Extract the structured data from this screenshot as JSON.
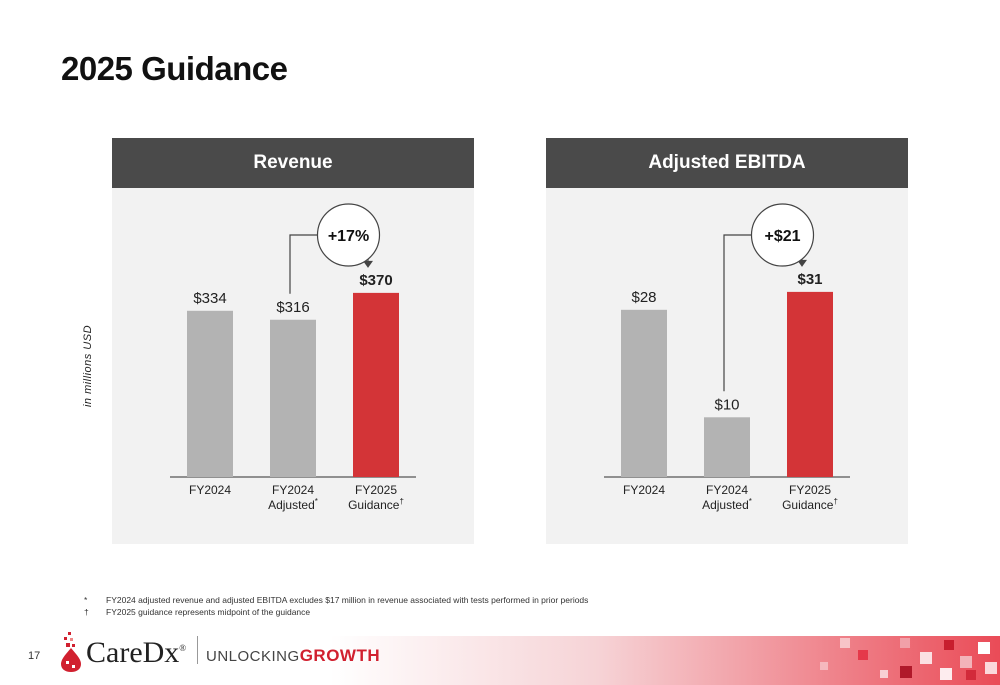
{
  "slide": {
    "title": "2025 Guidance",
    "unit_label": "in millions USD",
    "page_number": "17"
  },
  "colors": {
    "bar_gray": "#b3b3b3",
    "bar_red": "#d33437",
    "header_dark": "#4a4a4a",
    "panel_bg": "#f2f2f2",
    "brand_red": "#d1202f"
  },
  "chart_data": [
    {
      "type": "bar",
      "title": "Revenue",
      "categories": [
        "FY2024",
        "FY2024 Adjusted*",
        "FY2025 Guidance†"
      ],
      "category_lines": [
        [
          "FY2024"
        ],
        [
          "FY2024",
          "Adjusted"
        ],
        [
          "FY2025",
          "Guidance"
        ]
      ],
      "category_marks": [
        "",
        "*",
        "†"
      ],
      "values": [
        334,
        316,
        370
      ],
      "value_labels": [
        "$334",
        "$316",
        "$370"
      ],
      "highlight_index": 2,
      "change_label": "+17%",
      "ylim": [
        0,
        420
      ]
    },
    {
      "type": "bar",
      "title": "Adjusted EBITDA",
      "categories": [
        "FY2024",
        "FY2024 Adjusted*",
        "FY2025 Guidance†"
      ],
      "category_lines": [
        [
          "FY2024"
        ],
        [
          "FY2024",
          "Adjusted"
        ],
        [
          "FY2025",
          "Guidance"
        ]
      ],
      "category_marks": [
        "",
        "*",
        "†"
      ],
      "values": [
        28,
        10,
        31
      ],
      "value_labels": [
        "$28",
        "$10",
        "$31"
      ],
      "highlight_index": 2,
      "change_label": "+$21",
      "ylim": [
        0,
        35
      ]
    }
  ],
  "footnotes": [
    {
      "mark": "*",
      "text": "FY2024 adjusted revenue and adjusted EBITDA excludes $17 million in revenue associated with tests performed in prior periods"
    },
    {
      "mark": "†",
      "text": "FY2025 guidance represents midpoint of the guidance"
    }
  ],
  "branding": {
    "logo_text": "CareDx",
    "logo_reg": "®",
    "tagline_light": "UNLOCKING",
    "tagline_bold": "GROWTH"
  }
}
